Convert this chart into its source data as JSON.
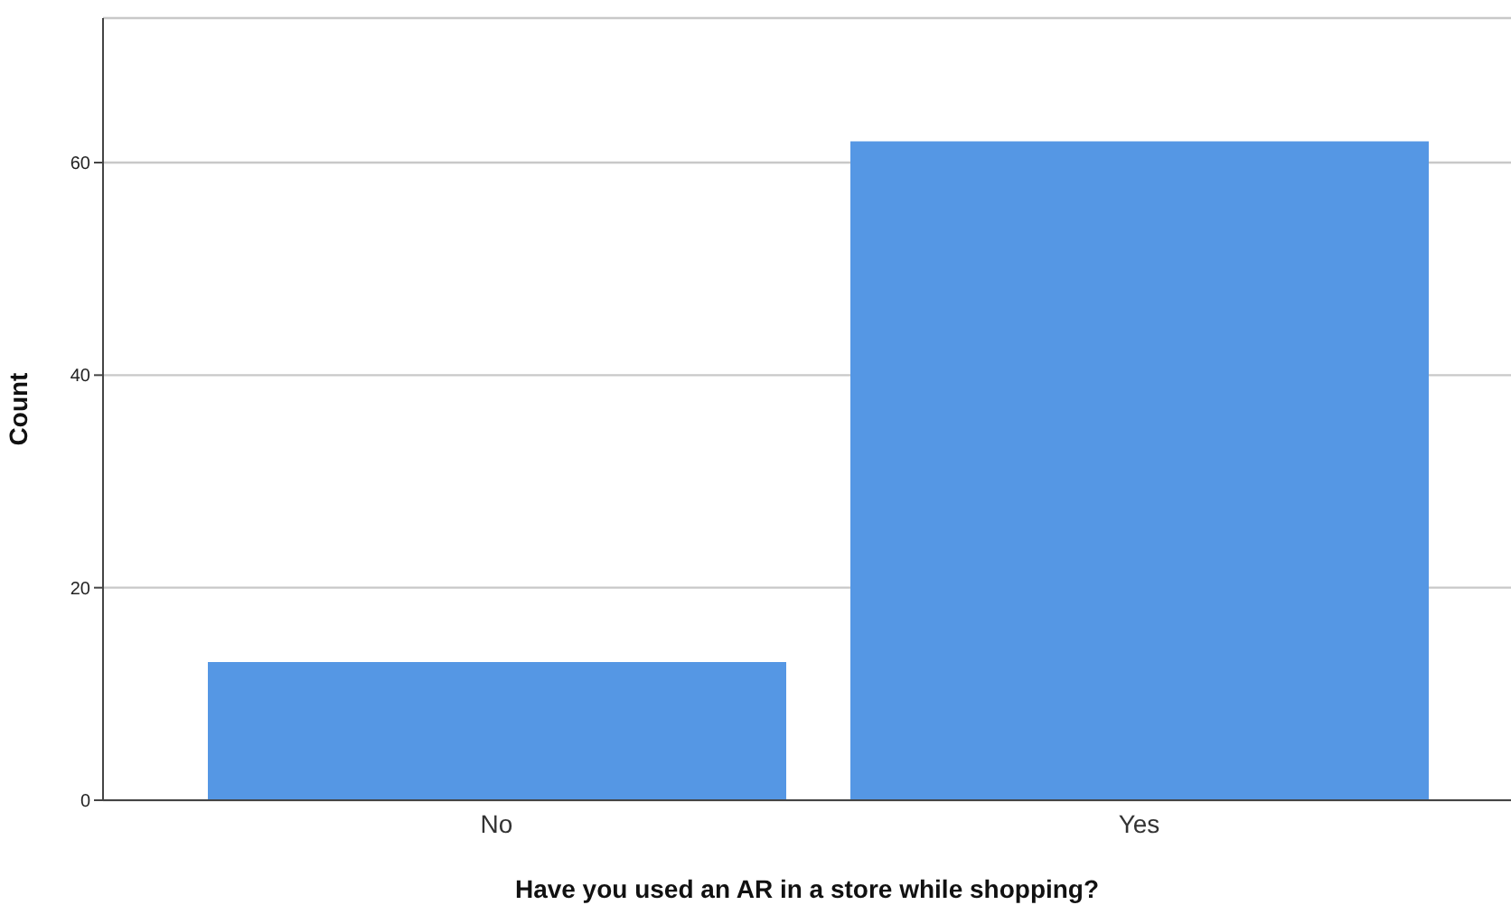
{
  "chart_data": {
    "type": "bar",
    "xlabel": "Have you used an AR in a store while shopping?",
    "ylabel": "Count",
    "categories": [
      "No",
      "Yes"
    ],
    "values": [
      13,
      62
    ],
    "color": "#5597e4",
    "ylim": [
      0,
      73.6
    ],
    "yticks": [
      0,
      20,
      40,
      60
    ],
    "grid": "y"
  }
}
